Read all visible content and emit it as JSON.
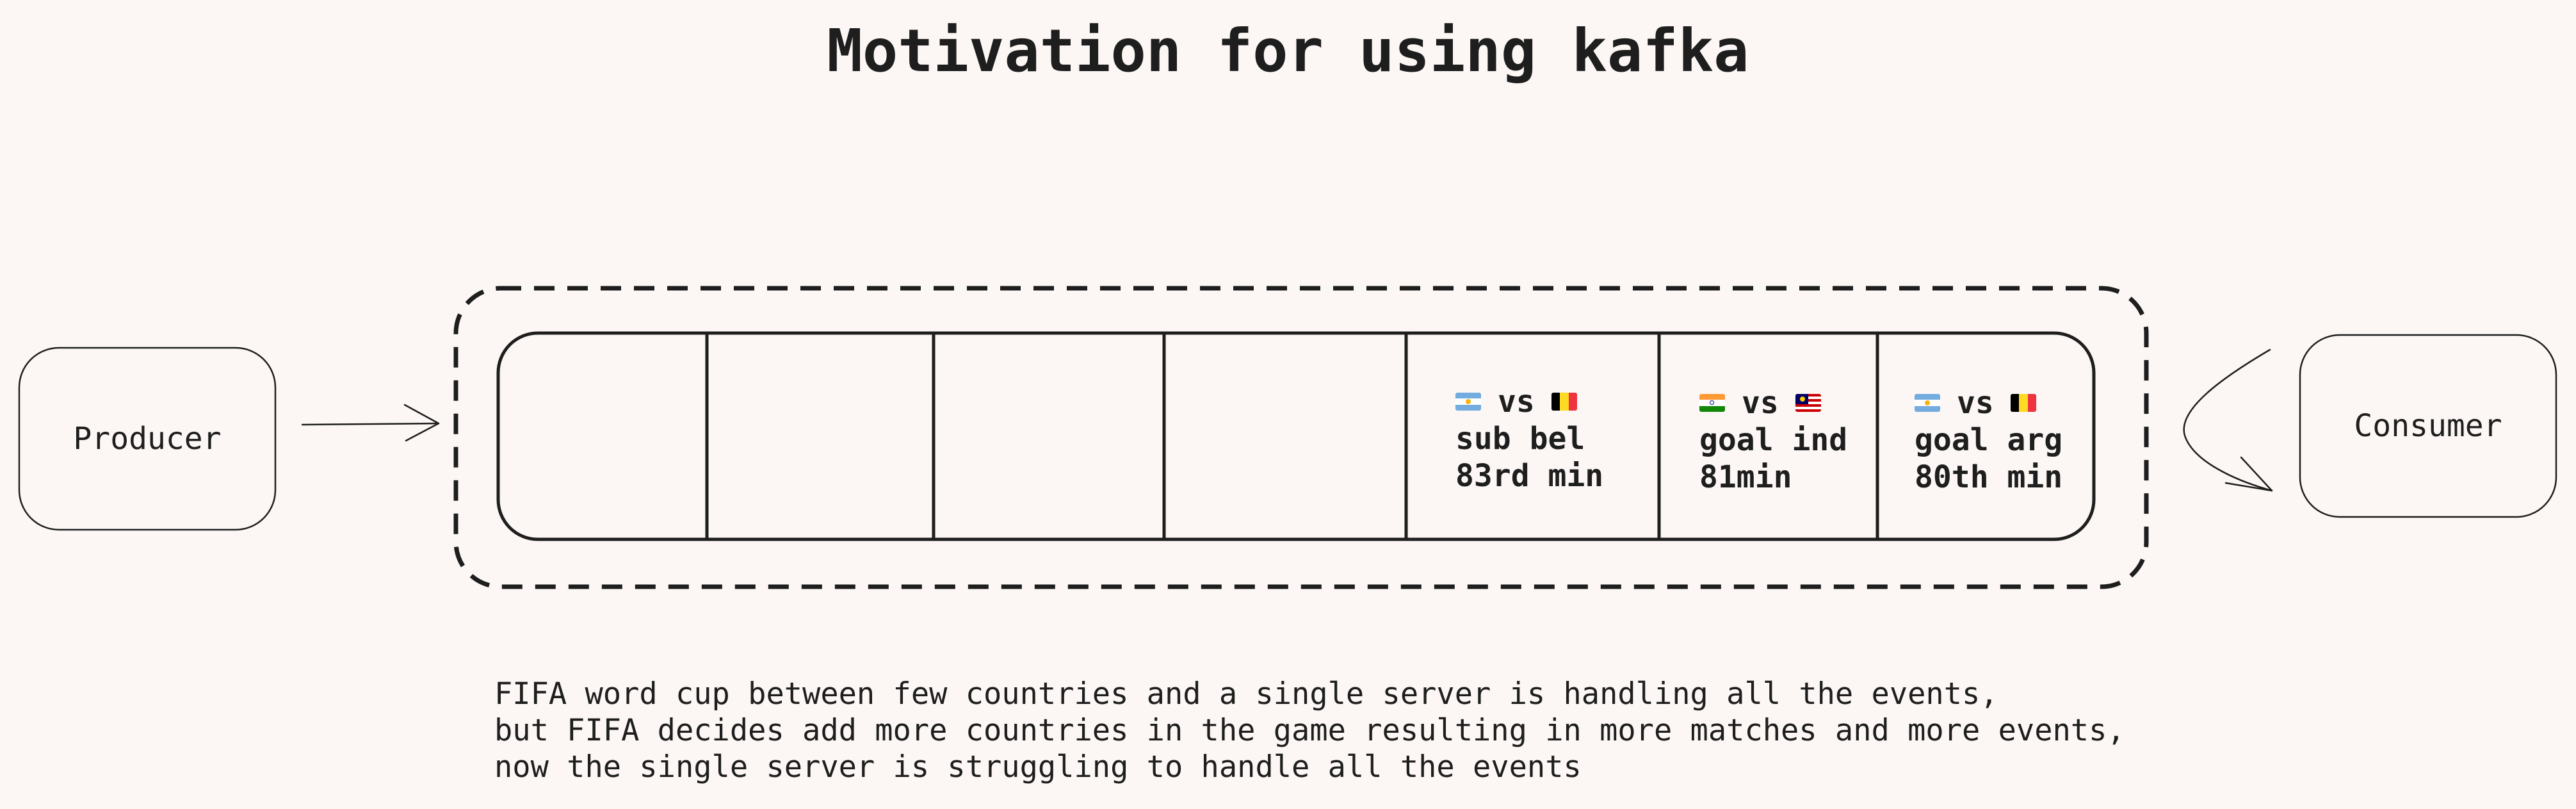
{
  "title": "Motivation for using kafka",
  "producer": {
    "label": "Producer"
  },
  "consumer": {
    "label": "Consumer"
  },
  "queue": {
    "events": [
      {
        "team_a_flag": "argentina-flag-icon",
        "vs": "vs",
        "team_b_flag": "belgium-flag-icon",
        "line1": "sub bel",
        "line2": "83rd min"
      },
      {
        "team_a_flag": "india-flag-icon",
        "vs": "vs",
        "team_b_flag": "malaysia-flag-icon",
        "line1": "goal ind",
        "line2": "81min"
      },
      {
        "team_a_flag": "argentina-flag-icon",
        "vs": "vs",
        "team_b_flag": "belgium-flag-icon",
        "line1": "goal arg",
        "line2": "80th min"
      }
    ]
  },
  "description": {
    "lines": [
      "FIFA word cup between few countries and a single server is handling all the events,",
      "but FIFA decides add more countries in the game resulting in more matches and more events,",
      "now the single server is struggling to handle all the events"
    ]
  },
  "colors": {
    "background": "#fcf7f5",
    "stroke": "#1e1e1e"
  }
}
